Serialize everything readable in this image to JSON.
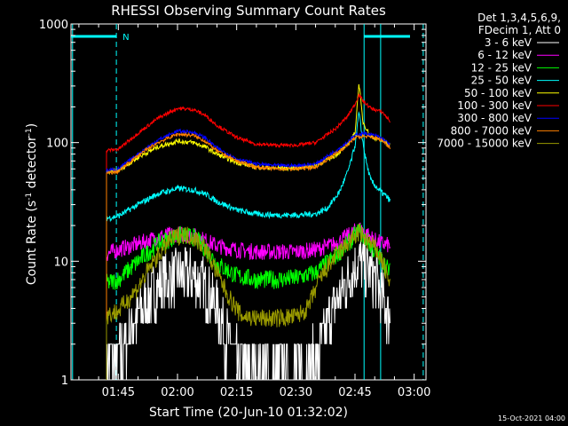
{
  "chart_data": {
    "type": "line",
    "title": "RHESSI Observing Summary Count Rates",
    "xlabel": "Start Time (20-Jun-10 01:32:02)",
    "ylabel_main": "Count Rate (s",
    "ylabel_sup1": "-1",
    "ylabel_mid": " detector",
    "ylabel_sup2": "-1",
    "ylabel_end": ")",
    "yscale": "log",
    "ylim": [
      1,
      1000
    ],
    "xlim_minutes": [
      93,
      183
    ],
    "x_ticks": [
      {
        "label": "01:45",
        "t": 105
      },
      {
        "label": "02:00",
        "t": 120
      },
      {
        "label": "02:15",
        "t": 135
      },
      {
        "label": "02:30",
        "t": 150
      },
      {
        "label": "02:45",
        "t": 165
      },
      {
        "label": "03:00",
        "t": 180
      }
    ],
    "y_ticks": [
      {
        "label": "1",
        "v": 1
      },
      {
        "label": "10",
        "v": 10
      },
      {
        "label": "100",
        "v": 100
      },
      {
        "label": "1000",
        "v": 1000
      }
    ],
    "legend_header": [
      "Det 1,3,4,5,6,9,",
      "FDecim 1, Att 0"
    ],
    "legend_placement": "right",
    "series": [
      {
        "name": "3 - 6 keV",
        "color": "#ffffff",
        "points": [
          [
            102,
            1.5
          ],
          [
            105,
            1.5
          ],
          [
            108,
            2.6
          ],
          [
            112,
            4.5
          ],
          [
            116,
            6.5
          ],
          [
            120,
            7.5
          ],
          [
            124,
            7.5
          ],
          [
            127,
            6
          ],
          [
            130,
            4
          ],
          [
            133,
            2
          ],
          [
            136,
            1.3
          ],
          [
            140,
            1.2
          ],
          [
            145,
            1.2
          ],
          [
            150,
            1.2
          ],
          [
            155,
            1.5
          ],
          [
            158,
            3
          ],
          [
            161,
            5
          ],
          [
            164,
            8
          ],
          [
            166,
            10
          ],
          [
            168,
            8.5
          ],
          [
            170,
            7.5
          ],
          [
            172,
            5
          ],
          [
            174,
            3
          ]
        ]
      },
      {
        "name": "6 - 12 keV",
        "color": "#ff00ff",
        "points": [
          [
            102,
            11.5
          ],
          [
            105,
            12.5
          ],
          [
            110,
            14
          ],
          [
            115,
            16
          ],
          [
            120,
            17
          ],
          [
            124,
            16.5
          ],
          [
            127,
            15
          ],
          [
            130,
            13.5
          ],
          [
            135,
            12.5
          ],
          [
            140,
            12
          ],
          [
            145,
            12
          ],
          [
            150,
            12
          ],
          [
            155,
            12.5
          ],
          [
            160,
            14
          ],
          [
            164,
            17
          ],
          [
            166,
            19
          ],
          [
            168,
            17
          ],
          [
            170,
            15
          ],
          [
            172,
            14
          ],
          [
            174,
            13.5
          ]
        ]
      },
      {
        "name": "12 - 25 keV",
        "color": "#00ff00",
        "points": [
          [
            102,
            6.5
          ],
          [
            105,
            7
          ],
          [
            110,
            10
          ],
          [
            115,
            14
          ],
          [
            120,
            16.5
          ],
          [
            124,
            16
          ],
          [
            127,
            13
          ],
          [
            130,
            9.5
          ],
          [
            135,
            7.5
          ],
          [
            140,
            7
          ],
          [
            145,
            7
          ],
          [
            150,
            7.2
          ],
          [
            155,
            8
          ],
          [
            160,
            11
          ],
          [
            164,
            15
          ],
          [
            166,
            18
          ],
          [
            168,
            15
          ],
          [
            170,
            12
          ],
          [
            172,
            10
          ],
          [
            174,
            8
          ]
        ]
      },
      {
        "name": "25 - 50 keV",
        "color": "#00ffff",
        "points": [
          [
            102,
            23
          ],
          [
            105,
            24
          ],
          [
            110,
            30
          ],
          [
            115,
            37
          ],
          [
            120,
            41
          ],
          [
            124,
            40
          ],
          [
            127,
            37
          ],
          [
            130,
            32
          ],
          [
            135,
            27
          ],
          [
            140,
            25
          ],
          [
            145,
            24.5
          ],
          [
            150,
            24.5
          ],
          [
            155,
            25
          ],
          [
            158,
            28
          ],
          [
            161,
            38
          ],
          [
            163,
            55
          ],
          [
            164,
            70
          ],
          [
            165,
            95
          ],
          [
            166,
            180
          ],
          [
            167,
            100
          ],
          [
            168,
            65
          ],
          [
            169,
            48
          ],
          [
            171,
            40
          ],
          [
            173,
            35
          ],
          [
            174,
            32
          ]
        ]
      },
      {
        "name": "50 - 100 keV",
        "color": "#ffff00",
        "points": [
          [
            102,
            56
          ],
          [
            105,
            58
          ],
          [
            110,
            75
          ],
          [
            115,
            92
          ],
          [
            120,
            103
          ],
          [
            124,
            100
          ],
          [
            127,
            92
          ],
          [
            130,
            80
          ],
          [
            135,
            68
          ],
          [
            140,
            62
          ],
          [
            145,
            61
          ],
          [
            150,
            61
          ],
          [
            155,
            64
          ],
          [
            160,
            78
          ],
          [
            163,
            95
          ],
          [
            165,
            120
          ],
          [
            166,
            320
          ],
          [
            167,
            150
          ],
          [
            169,
            112
          ],
          [
            172,
            105
          ],
          [
            174,
            95
          ]
        ]
      },
      {
        "name": "100 - 300 keV",
        "color": "#ff0000",
        "points": [
          [
            102,
            86
          ],
          [
            105,
            88
          ],
          [
            110,
            120
          ],
          [
            115,
            160
          ],
          [
            120,
            195
          ],
          [
            124,
            190
          ],
          [
            127,
            170
          ],
          [
            130,
            140
          ],
          [
            135,
            110
          ],
          [
            140,
            97
          ],
          [
            145,
            95
          ],
          [
            150,
            95
          ],
          [
            155,
            100
          ],
          [
            160,
            130
          ],
          [
            163,
            165
          ],
          [
            165,
            210
          ],
          [
            166,
            255
          ],
          [
            167,
            225
          ],
          [
            169,
            195
          ],
          [
            172,
            180
          ],
          [
            174,
            150
          ]
        ]
      },
      {
        "name": "300 - 800 keV",
        "color": "#0000ff",
        "points": [
          [
            102,
            58
          ],
          [
            105,
            60
          ],
          [
            110,
            80
          ],
          [
            115,
            105
          ],
          [
            120,
            125
          ],
          [
            124,
            122
          ],
          [
            127,
            110
          ],
          [
            130,
            90
          ],
          [
            135,
            73
          ],
          [
            140,
            66
          ],
          [
            145,
            64
          ],
          [
            150,
            64
          ],
          [
            155,
            66
          ],
          [
            160,
            85
          ],
          [
            163,
            100
          ],
          [
            165,
            115
          ],
          [
            167,
            120
          ],
          [
            170,
            115
          ],
          [
            172,
            108
          ],
          [
            174,
            95
          ]
        ]
      },
      {
        "name": "800 - 7000 keV",
        "color": "#ff8000",
        "points": [
          [
            102,
            55
          ],
          [
            105,
            57
          ],
          [
            110,
            78
          ],
          [
            115,
            100
          ],
          [
            120,
            118
          ],
          [
            124,
            115
          ],
          [
            127,
            103
          ],
          [
            130,
            85
          ],
          [
            135,
            70
          ],
          [
            140,
            62
          ],
          [
            145,
            60
          ],
          [
            150,
            60
          ],
          [
            155,
            62
          ],
          [
            160,
            80
          ],
          [
            163,
            95
          ],
          [
            165,
            110
          ],
          [
            167,
            113
          ],
          [
            170,
            110
          ],
          [
            172,
            104
          ],
          [
            174,
            90
          ]
        ]
      },
      {
        "name": "7000 - 15000 keV",
        "color": "#999900",
        "points": [
          [
            102,
            3.5
          ],
          [
            105,
            3.8
          ],
          [
            110,
            6
          ],
          [
            114,
            10
          ],
          [
            118,
            15
          ],
          [
            121,
            17
          ],
          [
            124,
            16
          ],
          [
            127,
            13
          ],
          [
            130,
            8
          ],
          [
            133,
            5
          ],
          [
            136,
            3.5
          ],
          [
            140,
            3.3
          ],
          [
            145,
            3.3
          ],
          [
            150,
            3.4
          ],
          [
            153,
            4
          ],
          [
            156,
            7
          ],
          [
            160,
            11
          ],
          [
            164,
            15
          ],
          [
            166,
            17.5
          ],
          [
            168,
            15
          ],
          [
            170,
            13
          ],
          [
            172,
            10
          ],
          [
            174,
            6
          ]
        ]
      }
    ],
    "markers": [
      {
        "label": "N"
      }
    ],
    "footer_date": "15-Oct-2021 04:00"
  }
}
